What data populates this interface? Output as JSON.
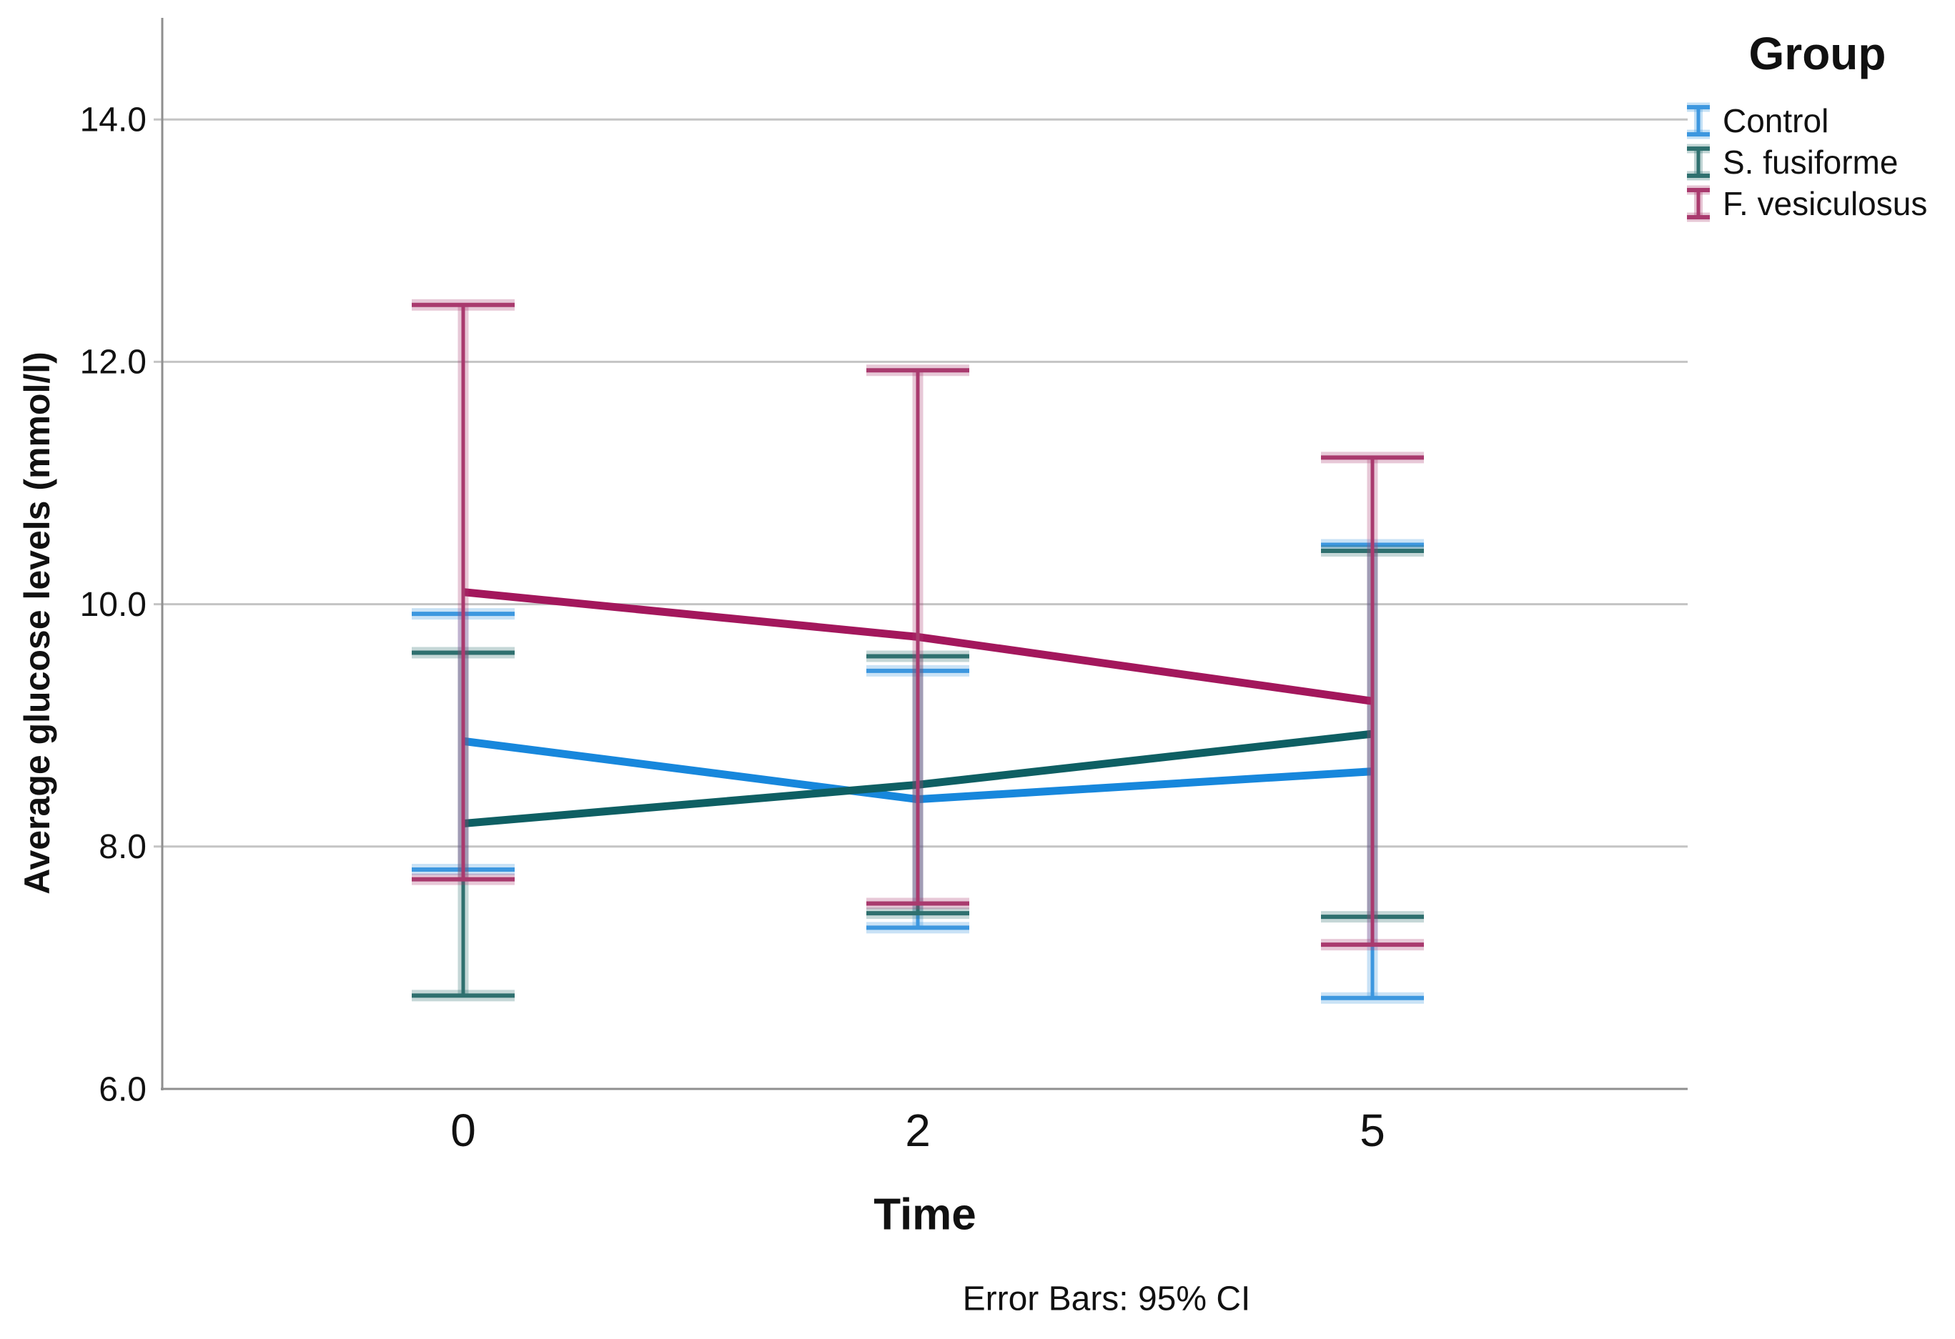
{
  "figure": {
    "footnote": "Error Bars: 95% CI"
  },
  "legend": {
    "title": "Group"
  },
  "chart_data": {
    "type": "line",
    "title": "",
    "xlabel": "Time",
    "ylabel": "Average glucose levels (mmol/l)",
    "categories": [
      "0",
      "2",
      "5"
    ],
    "yticks": [
      "6.0",
      "8.0",
      "10.0",
      "12.0",
      "14.0"
    ],
    "ylim": [
      6.0,
      14.9
    ],
    "grid": "horizontal",
    "legend_position": "top-right",
    "error_bars": "95% CI",
    "series": [
      {
        "name": "Control",
        "color": "#1787DC",
        "err_color": "#3D97DF",
        "means": [
          8.87,
          8.39,
          8.62
        ],
        "ci_low": [
          7.81,
          7.33,
          6.75
        ],
        "ci_high": [
          9.92,
          9.45,
          10.49
        ]
      },
      {
        "name": "S. fusiforme",
        "color": "#0E5F63",
        "err_color": "#2F706F",
        "means": [
          8.19,
          8.51,
          8.93
        ],
        "ci_low": [
          6.77,
          7.45,
          7.42
        ],
        "ci_high": [
          9.6,
          9.57,
          10.44
        ]
      },
      {
        "name": "F. vesiculosus",
        "color": "#A3175C",
        "err_color": "#A93A6E",
        "means": [
          10.1,
          9.73,
          9.2
        ],
        "ci_low": [
          7.73,
          7.53,
          7.19
        ],
        "ci_high": [
          12.47,
          11.93,
          11.21
        ]
      }
    ],
    "style": {
      "grid_color": "#C4C4C4",
      "axis_color": "#8F8F8F",
      "text_color": "#111111"
    }
  }
}
